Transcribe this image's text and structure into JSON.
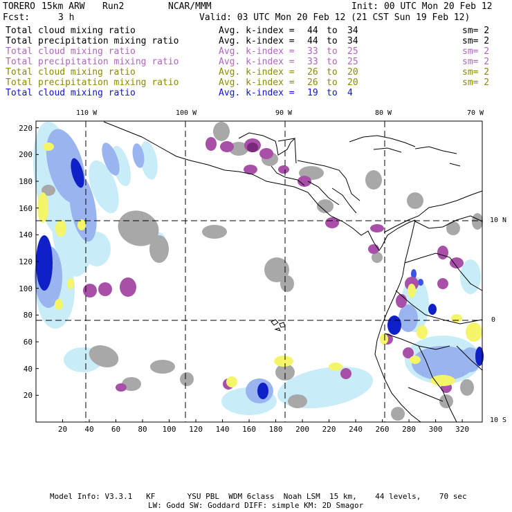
{
  "header": {
    "model": "TORERO",
    "resolution": "15km ARW",
    "run": "Run2",
    "org": "NCAR/MMM",
    "init": "Init: 00 UTC Mon 20 Feb 12",
    "fcst_label": "Fcst:",
    "fcst_value": "3 h",
    "valid": "Valid: 03 UTC Mon 20 Feb 12 (21 CST Sun 19 Feb 12)"
  },
  "legend": [
    {
      "field": "Total cloud mixing ratio",
      "avg": "Avg. k-index =",
      "from": "44",
      "to_label": "to",
      "to": "34",
      "sm": "sm= 2",
      "color": "#000000"
    },
    {
      "field": "Total precipitation mixing ratio",
      "avg": "Avg. k-index =",
      "from": "44",
      "to_label": "to",
      "to": "34",
      "sm": "sm= 2",
      "color": "#000000"
    },
    {
      "field": "Total cloud mixing ratio",
      "avg": "Avg. k-index =",
      "from": "33",
      "to_label": "to",
      "to": "25",
      "sm": "sm= 2",
      "color": "#b064c0"
    },
    {
      "field": "Total precipitation mixing ratio",
      "avg": "Avg. k-index =",
      "from": "33",
      "to_label": "to",
      "to": "25",
      "sm": "sm= 2",
      "color": "#b064c0"
    },
    {
      "field": "Total cloud mixing ratio",
      "avg": "Avg. k-index =",
      "from": "26",
      "to_label": "to",
      "to": "20",
      "sm": "sm= 2",
      "color": "#8a8a00"
    },
    {
      "field": "Total precipitation mixing ratio",
      "avg": "Avg. k-index =",
      "from": "26",
      "to_label": "to",
      "to": "20",
      "sm": "sm= 2",
      "color": "#8a8a00"
    },
    {
      "field": "Total cloud mixing ratio",
      "avg": "Avg. k-index =",
      "from": "19",
      "to_label": "to",
      "to": "4",
      "sm": "",
      "color": "#1010e0"
    }
  ],
  "map": {
    "lon_labels": [
      "110 W",
      "100 W",
      "90 W",
      "80 W",
      "70 W"
    ],
    "lat_labels": [
      "10 N",
      "0",
      "10 S"
    ],
    "x_ticks": [
      "20",
      "40",
      "60",
      "80",
      "100",
      "120",
      "140",
      "160",
      "180",
      "200",
      "220",
      "240",
      "260",
      "280",
      "300",
      "320"
    ],
    "y_ticks": [
      "220",
      "200",
      "180",
      "160",
      "140",
      "120",
      "100",
      "80",
      "60",
      "40",
      "20"
    ],
    "x_range": [
      0,
      335
    ],
    "y_range": [
      0,
      225
    ],
    "colors": {
      "gray": "#a8a8a8",
      "purple": "#a850a8",
      "dark_purple": "#7a2a7a",
      "yellow": "#f5f56a",
      "light_blue": "#c8ecf8",
      "mid_blue": "#9ab4f0",
      "blue": "#3b52e6",
      "dark_blue": "#1020c8"
    }
  },
  "footer": {
    "line1": "Model Info: V3.3.1   KF       YSU PBL  WDM 6class  Noah LSM  15 km,    44 levels,    70 sec",
    "line2": "LW: Godd SW: Goddard DIFF: simple KM: 2D Smagor"
  }
}
